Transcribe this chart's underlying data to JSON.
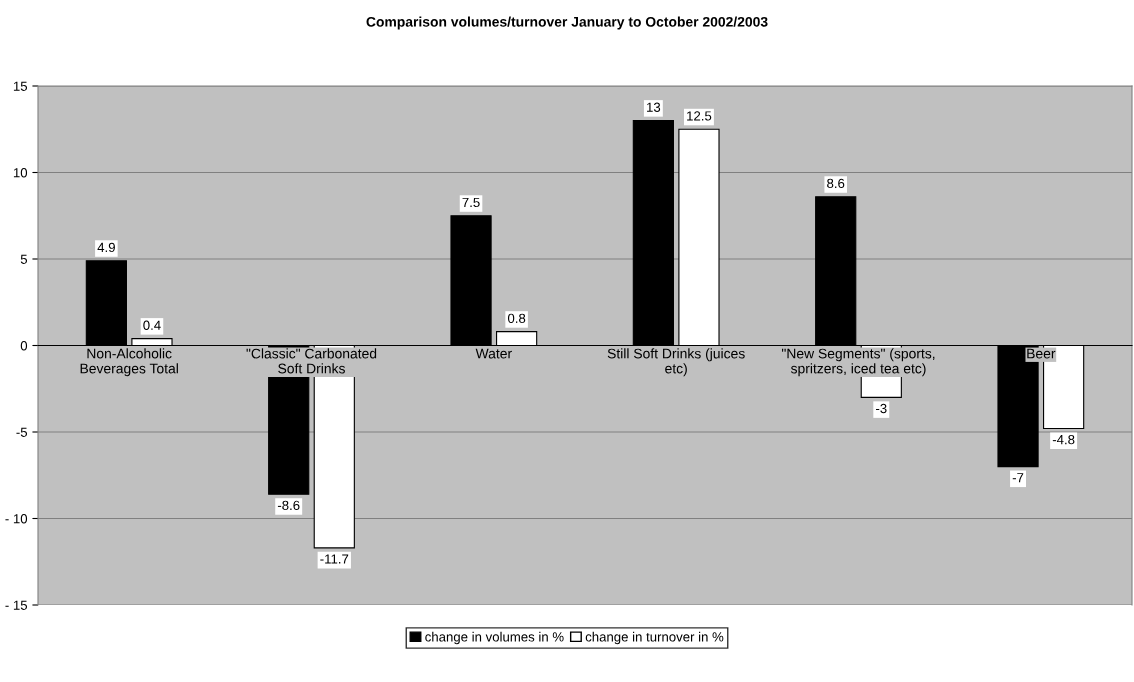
{
  "chart_data": {
    "type": "bar",
    "title": "Comparison volumes/turnover January to October 2002/2003",
    "categories": [
      "Non-Alcoholic\nBeverages Total",
      "\"Classic\" Carbonated\nSoft Drinks",
      "Water",
      "Still Soft Drinks (juices\netc)",
      "\"New Segments\" (sports,\nspritzers, iced tea etc)",
      "Beer"
    ],
    "series": [
      {
        "name": "change in volumes in %",
        "color": "#000000",
        "values": [
          4.9,
          -8.6,
          7.5,
          13,
          8.6,
          -7
        ]
      },
      {
        "name": "change in turnover in %",
        "color": "#ffffff",
        "values": [
          0.4,
          -11.7,
          0.8,
          12.5,
          -3,
          -4.8
        ]
      }
    ],
    "ylim": [
      -15,
      15
    ],
    "yticks": [
      {
        "value": -15,
        "label": "- 15"
      },
      {
        "value": -10,
        "label": "- 10"
      },
      -5,
      0,
      5,
      10,
      15
    ],
    "grid": "y",
    "legend": "bottom",
    "data_labels": true
  }
}
